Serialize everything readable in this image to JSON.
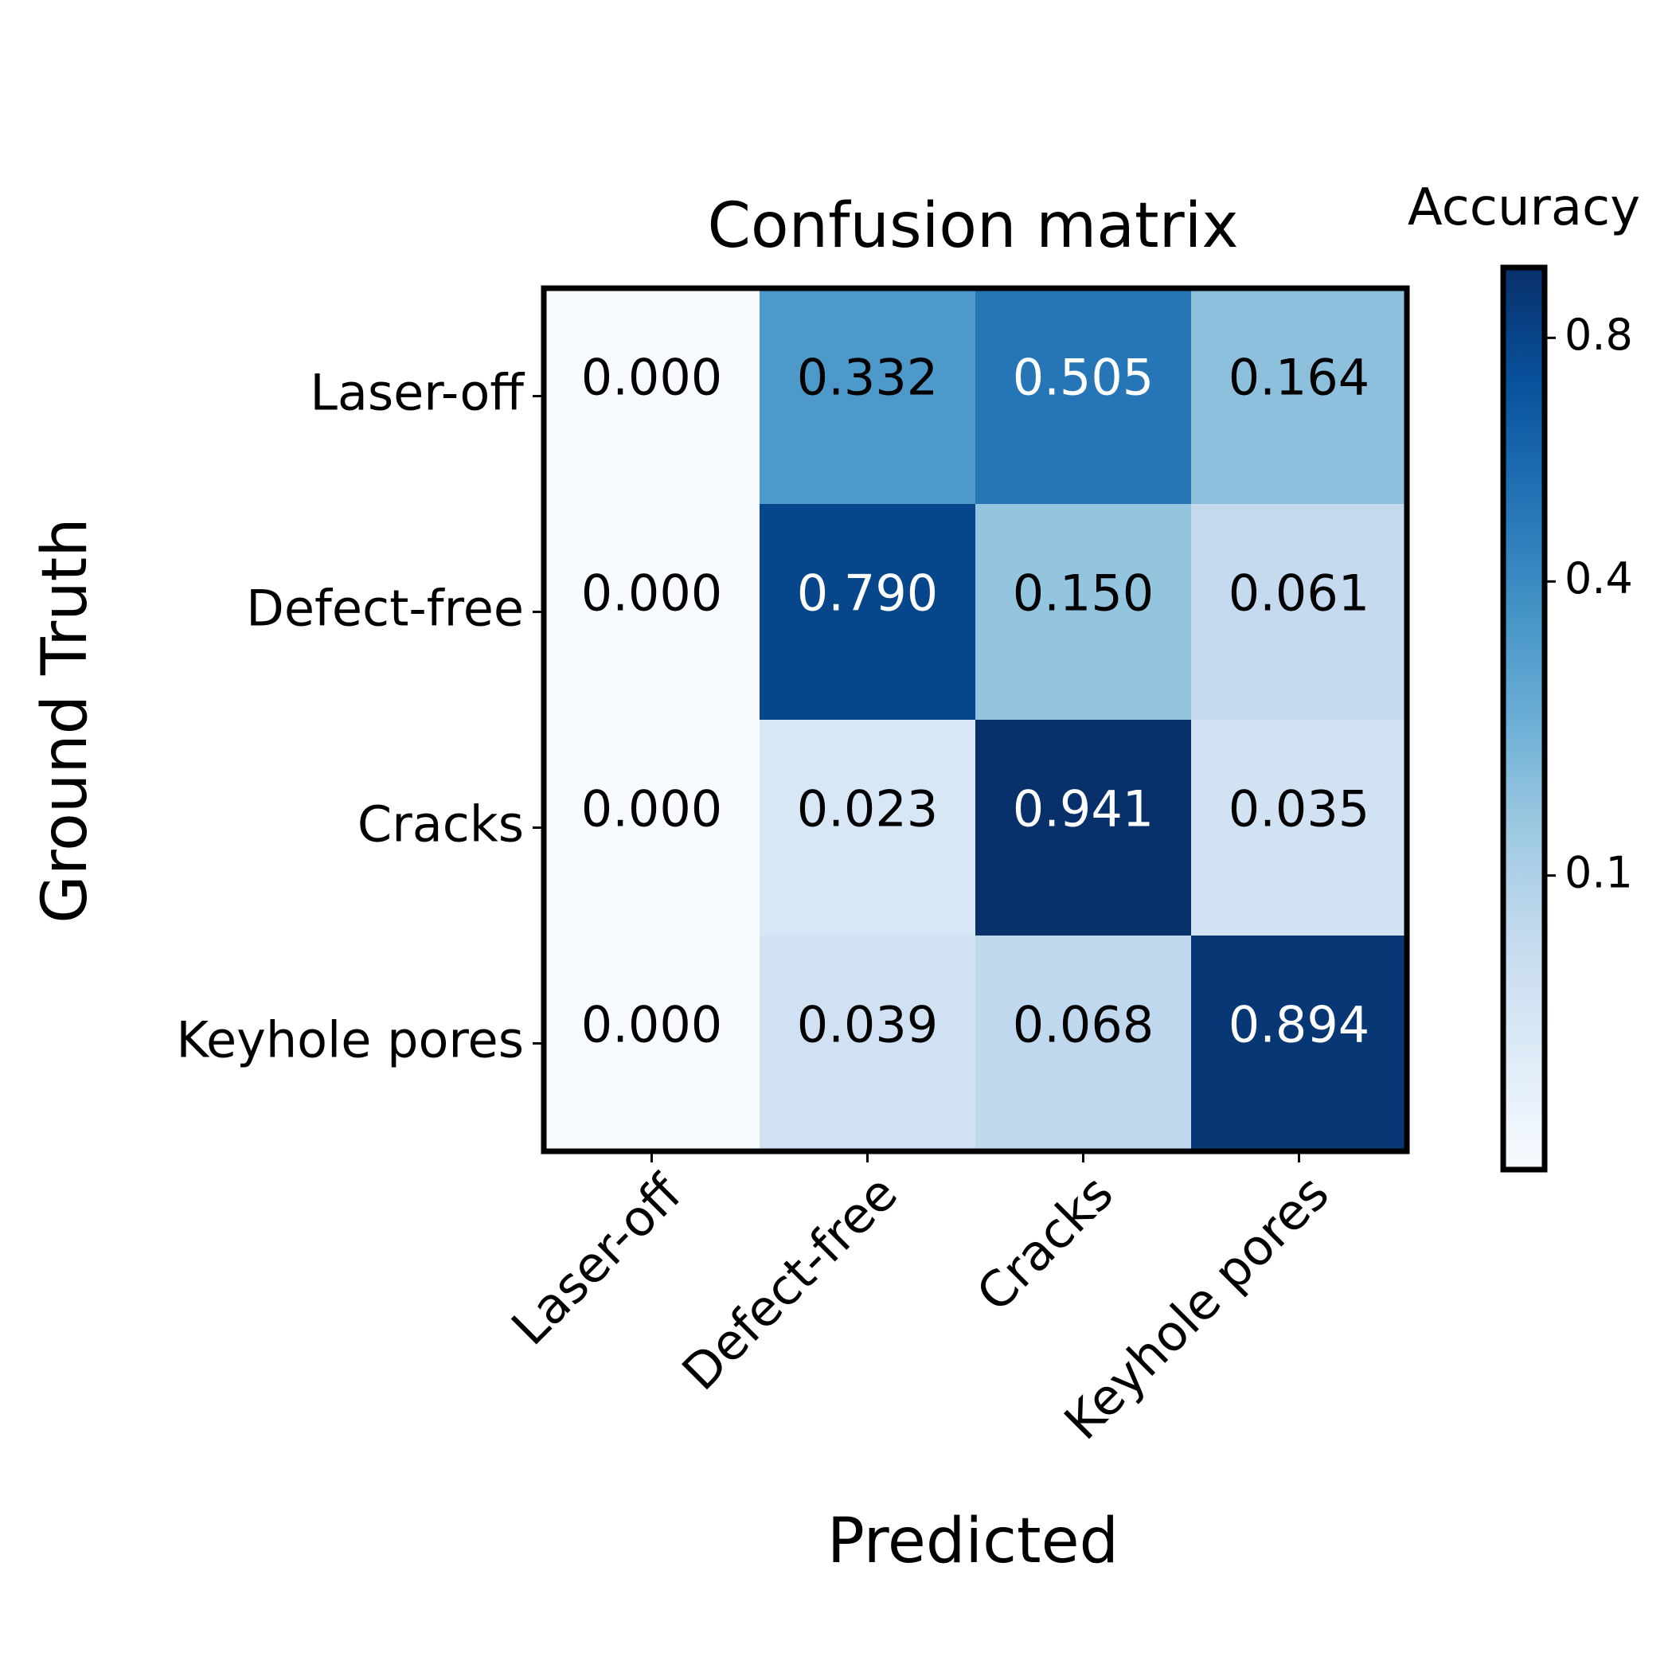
{
  "chart_data": {
    "type": "heatmap",
    "title": "Confusion matrix",
    "xlabel": "Predicted",
    "ylabel": "Ground Truth",
    "x_categories": [
      "Laser-off",
      "Defect-free",
      "Cracks",
      "Keyhole pores"
    ],
    "y_categories": [
      "Laser-off",
      "Defect-free",
      "Cracks",
      "Keyhole pores"
    ],
    "values": [
      [
        0.0,
        0.332,
        0.505,
        0.164
      ],
      [
        0.0,
        0.79,
        0.15,
        0.061
      ],
      [
        0.0,
        0.023,
        0.941,
        0.035
      ],
      [
        0.0,
        0.039,
        0.068,
        0.894
      ]
    ],
    "value_labels": [
      [
        "0.000",
        "0.332",
        "0.505",
        "0.164"
      ],
      [
        "0.000",
        "0.790",
        "0.150",
        "0.061"
      ],
      [
        "0.000",
        "0.023",
        "0.941",
        "0.035"
      ],
      [
        "0.000",
        "0.039",
        "0.068",
        "0.894"
      ]
    ],
    "colormap": "Blues",
    "colorbar": {
      "label": "Accuracy",
      "ticks": [
        0.1,
        0.4,
        0.8
      ],
      "tick_labels": [
        "0.1",
        "0.4",
        "0.8"
      ],
      "range": [
        0.0,
        0.941
      ]
    },
    "grid": false
  }
}
